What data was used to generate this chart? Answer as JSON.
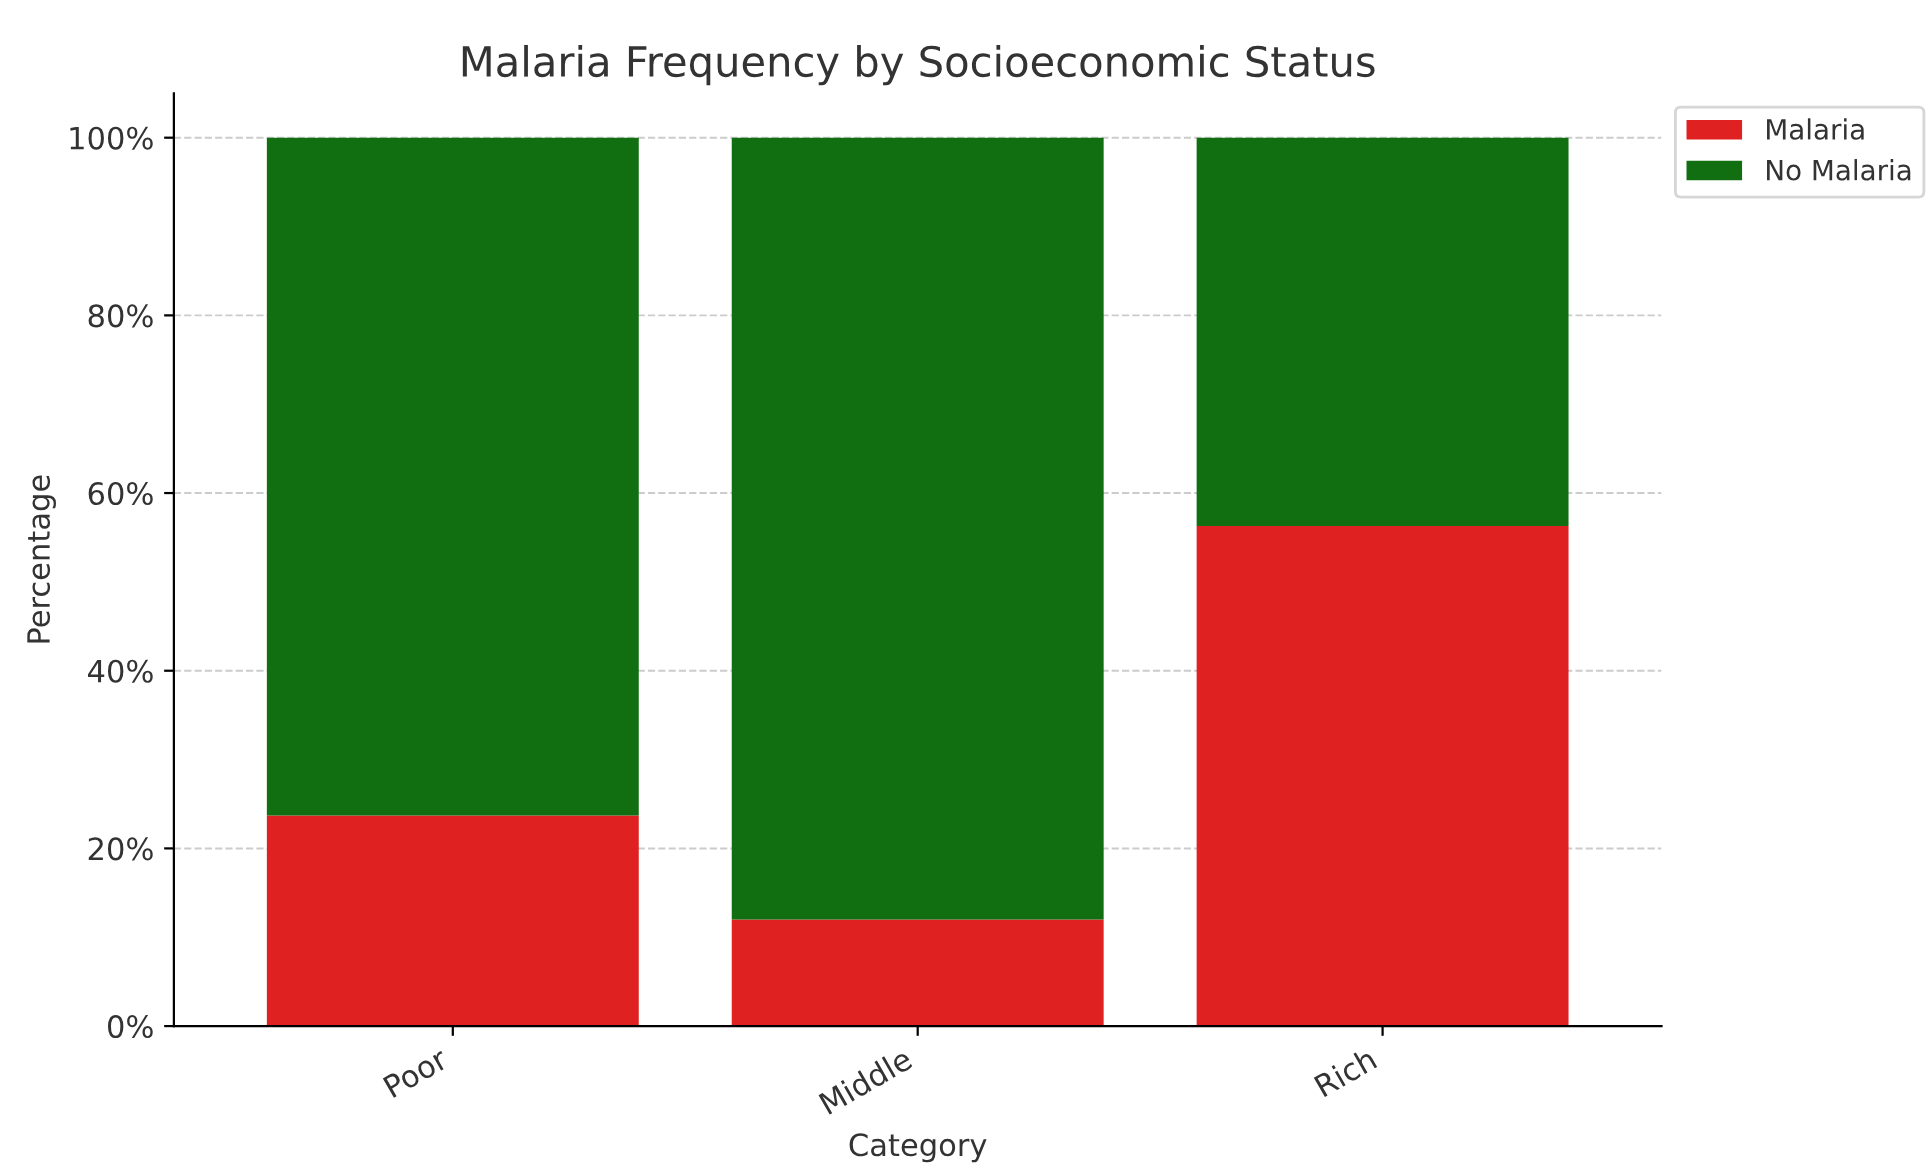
{
  "chart_data": {
    "type": "bar",
    "stacked": true,
    "title": "Malaria Frequency by Socioeconomic Status",
    "xlabel": "Category",
    "ylabel": "Percentage",
    "categories": [
      "Poor",
      "Middle",
      "Rich"
    ],
    "series": [
      {
        "name": "Malaria",
        "color": "#e02121",
        "values": [
          23.7,
          12.0,
          56.3
        ]
      },
      {
        "name": "No Malaria",
        "color": "#116e11",
        "values": [
          76.3,
          88.0,
          43.7
        ]
      }
    ],
    "ylim": [
      0,
      105
    ],
    "yticks": [
      {
        "value": 0,
        "label": "0%"
      },
      {
        "value": 20,
        "label": "20%"
      },
      {
        "value": 40,
        "label": "40%"
      },
      {
        "value": 60,
        "label": "60%"
      },
      {
        "value": 80,
        "label": "80%"
      },
      {
        "value": 100,
        "label": "100%"
      }
    ],
    "grid": "y",
    "legend": "top right"
  }
}
